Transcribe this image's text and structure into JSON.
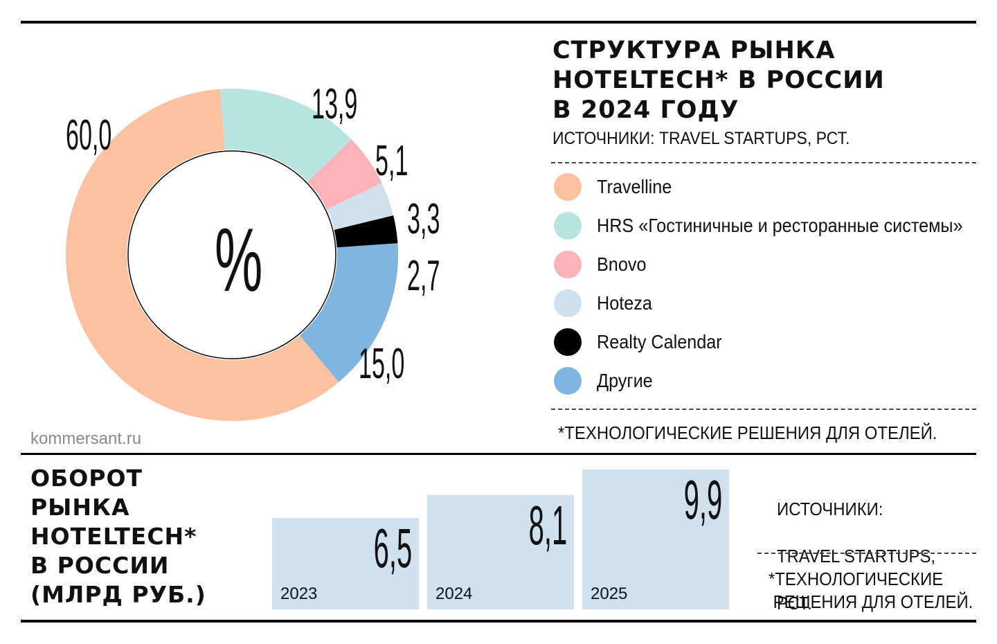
{
  "brand": "kommersant.ru",
  "top": {
    "title_lines": [
      "СТРУКТУРА РЫНКА",
      "HOTELTECH* В РОССИИ",
      "В 2024 ГОДУ"
    ],
    "source": "ИСТОЧНИКИ: TRAVEL STARTUPS, РСТ.",
    "footnote": "*ТЕХНОЛОГИЧЕСКИЕ РЕШЕНИЯ ДЛЯ ОТЕЛЕЙ.",
    "center_symbol": "%"
  },
  "bottom": {
    "title_lines": [
      "ОБОРОТ",
      "РЫНКА",
      "HOTELTECH*",
      "В РОССИИ",
      "(МЛРД РУБ.)"
    ],
    "source_lines": [
      "ИСТОЧНИКИ:",
      "TRAVEL STARTUPS,",
      "РСТ."
    ],
    "footnote_lines": [
      "*ТЕХНОЛОГИЧЕСКИЕ",
      " РЕШЕНИЯ ДЛЯ ОТЕЛЕЙ."
    ]
  },
  "chart_data": [
    {
      "type": "pie",
      "title": "СТРУКТУРА РЫНКА HOTELTECH* В РОССИИ В 2024 ГОДУ",
      "unit": "%",
      "donut": true,
      "slices": [
        {
          "name": "Travelline",
          "value": 60.0,
          "label": "60,0",
          "color": "#fcc29f"
        },
        {
          "name": "HRS «Гостиничные и ресторанные системы»",
          "value": 13.9,
          "label": "13,9",
          "color": "#b7e4e0"
        },
        {
          "name": "Bnovo",
          "value": 5.1,
          "label": "5,1",
          "color": "#fbb3b8"
        },
        {
          "name": "Hoteza",
          "value": 3.3,
          "label": "3,3",
          "color": "#cfe0ef"
        },
        {
          "name": "Realty Calendar",
          "value": 2.7,
          "label": "2,7",
          "color": "#000000"
        },
        {
          "name": "Другие",
          "value": 15.0,
          "label": "15,0",
          "color": "#80b5e0"
        }
      ],
      "legend_position": "right"
    },
    {
      "type": "bar",
      "title": "ОБОРОТ РЫНКА HOTELTECH* В РОССИИ (МЛРД РУБ.)",
      "categories": [
        "2023",
        "2024",
        "2025"
      ],
      "values": [
        6.5,
        8.1,
        9.9
      ],
      "value_labels": [
        "6,5",
        "8,1",
        "9,9"
      ],
      "color": "#cfe0ef"
    }
  ]
}
